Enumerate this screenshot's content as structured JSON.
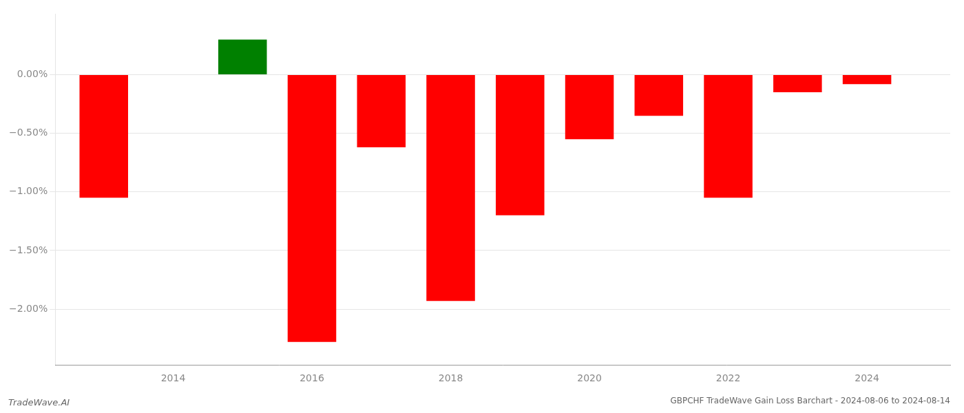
{
  "chart_data": {
    "type": "bar",
    "title": "GBPCHF TradeWave Gain Loss Barchart - 2024-08-06 to 2024-08-14",
    "annotations": [
      "TradeWave.AI"
    ],
    "x": [
      2013,
      2015,
      2016,
      2017,
      2018,
      2019,
      2020,
      2021,
      2022,
      2023,
      2024
    ],
    "values": [
      -1.05,
      0.3,
      -2.28,
      -0.62,
      -1.93,
      -1.2,
      -0.55,
      -0.35,
      -1.05,
      -0.15,
      -0.08
    ],
    "colors": [
      "#ff0000",
      "#008000",
      "#ff0000",
      "#ff0000",
      "#ff0000",
      "#ff0000",
      "#ff0000",
      "#ff0000",
      "#ff0000",
      "#ff0000",
      "#ff0000"
    ],
    "xlim": [
      2012.3,
      2025.2
    ],
    "ylim": [
      -2.48,
      0.52
    ],
    "xticks": [
      2014,
      2016,
      2018,
      2020,
      2022,
      2024
    ],
    "yticks": [
      {
        "value": 0.0,
        "label": "0.00%"
      },
      {
        "value": -0.5,
        "label": "−0.50%"
      },
      {
        "value": -1.0,
        "label": "−1.00%"
      },
      {
        "value": -1.5,
        "label": "−1.50%"
      },
      {
        "value": -2.0,
        "label": "−2.00%"
      }
    ],
    "grid": true
  }
}
